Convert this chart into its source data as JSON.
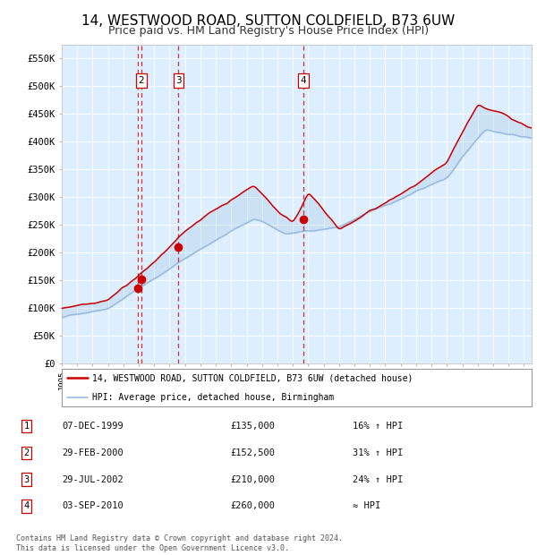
{
  "title": "14, WESTWOOD ROAD, SUTTON COLDFIELD, B73 6UW",
  "subtitle": "Price paid vs. HM Land Registry's House Price Index (HPI)",
  "title_fontsize": 11,
  "subtitle_fontsize": 9,
  "background_color": "#ffffff",
  "plot_bg_color": "#ddeeff",
  "ylim": [
    0,
    575000
  ],
  "yticks": [
    0,
    50000,
    100000,
    150000,
    200000,
    250000,
    300000,
    350000,
    400000,
    450000,
    500000,
    550000
  ],
  "ytick_labels": [
    "£0",
    "£50K",
    "£100K",
    "£150K",
    "£200K",
    "£250K",
    "£300K",
    "£350K",
    "£400K",
    "£450K",
    "£500K",
    "£550K"
  ],
  "red_color": "#cc0000",
  "blue_color": "#99bbdd",
  "legend_items": [
    {
      "label": "14, WESTWOOD ROAD, SUTTON COLDFIELD, B73 6UW (detached house)",
      "color": "#cc0000"
    },
    {
      "label": "HPI: Average price, detached house, Birmingham",
      "color": "#99bbdd"
    }
  ],
  "transactions": [
    {
      "num": 1,
      "year": 1999.93,
      "price": 135000
    },
    {
      "num": 2,
      "year": 2000.16,
      "price": 152500
    },
    {
      "num": 3,
      "year": 2002.58,
      "price": 210000
    },
    {
      "num": 4,
      "year": 2010.67,
      "price": 260000
    }
  ],
  "table_rows": [
    {
      "num": 1,
      "date": "07-DEC-1999",
      "price": "£135,000",
      "pct": "16% ↑ HPI"
    },
    {
      "num": 2,
      "date": "29-FEB-2000",
      "price": "£152,500",
      "pct": "31% ↑ HPI"
    },
    {
      "num": 3,
      "date": "29-JUL-2002",
      "price": "£210,000",
      "pct": "24% ↑ HPI"
    },
    {
      "num": 4,
      "date": "03-SEP-2010",
      "price": "£260,000",
      "pct": "≈ HPI"
    }
  ],
  "footnote1": "Contains HM Land Registry data © Crown copyright and database right 2024.",
  "footnote2": "This data is licensed under the Open Government Licence v3.0.",
  "xstart": 1995.0,
  "xend": 2025.5,
  "xtick_years": [
    1995,
    1996,
    1997,
    1998,
    1999,
    2000,
    2001,
    2002,
    2003,
    2004,
    2005,
    2006,
    2007,
    2008,
    2009,
    2010,
    2011,
    2012,
    2013,
    2014,
    2015,
    2016,
    2017,
    2018,
    2019,
    2020,
    2021,
    2022,
    2023,
    2024,
    2025
  ]
}
